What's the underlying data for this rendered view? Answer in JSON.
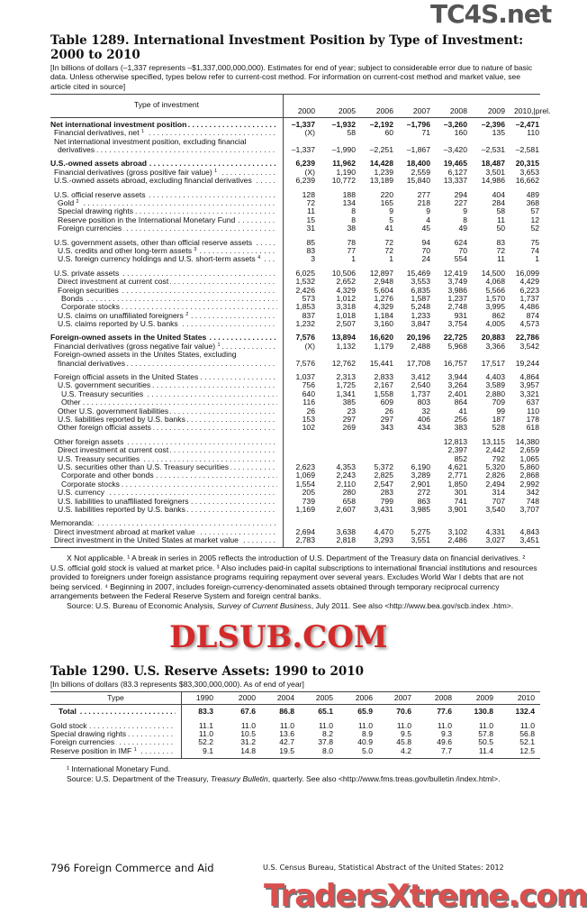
{
  "table1": {
    "title": "Table 1289. International Investment Position by Type of Investment: 2000 to 2010",
    "headnote": "[In billions of dollars (–1,337 represents –$1,337,000,000,000). Estimates for end of year; subject to considerable error due to nature of basic data. Unless otherwise specified, types below refer to current-cost method. For information on current-cost method and market value, see article cited in source]",
    "stub_header": "Type of investment",
    "years": [
      "2000",
      "2005",
      "2006",
      "2007",
      "2008",
      "2009",
      "2010,|prel."
    ],
    "rows": [
      {
        "label": "Net international investment position",
        "bold": true,
        "indent": 0,
        "values": [
          "–1,337",
          "–1,932",
          "–2,192",
          "–1,796",
          "–3,260",
          "–2,396",
          "–2,471"
        ]
      },
      {
        "label": "Financial derivatives, net",
        "sup": "1",
        "indent": 1,
        "values": [
          "(X)",
          "58",
          "60",
          "71",
          "160",
          "135",
          "110"
        ]
      },
      {
        "label": "Net international investment position, excluding financial",
        "indent": 1,
        "nodots": true,
        "values": []
      },
      {
        "label": "derivatives",
        "indent": 2,
        "values": [
          "–1,337",
          "–1,990",
          "–2,251",
          "–1,867",
          "–3,420",
          "–2,531",
          "–2,581"
        ]
      },
      {
        "label": "U.S.-owned assets abroad",
        "bold": true,
        "gap": true,
        "indent": 0,
        "values": [
          "6,239",
          "11,962",
          "14,428",
          "18,400",
          "19,465",
          "18,487",
          "20,315"
        ]
      },
      {
        "label": "Financial derivatives (gross positive fair value)",
        "sup": "1",
        "indent": 1,
        "values": [
          "(X)",
          "1,190",
          "1,239",
          "2,559",
          "6,127",
          "3,501",
          "3,653"
        ]
      },
      {
        "label": "U.S.-owned assets abroad, excluding financial derivatives",
        "indent": 1,
        "values": [
          "6,239",
          "10,772",
          "13,189",
          "15,840",
          "13,337",
          "14,986",
          "16,662"
        ]
      },
      {
        "label": "U.S. official reserve assets",
        "gap": true,
        "indent": 1,
        "values": [
          "128",
          "188",
          "220",
          "277",
          "294",
          "404",
          "489"
        ]
      },
      {
        "label": "Gold",
        "sup": "2",
        "indent": 2,
        "values": [
          "72",
          "134",
          "165",
          "218",
          "227",
          "284",
          "368"
        ]
      },
      {
        "label": "Special drawing rights",
        "indent": 2,
        "values": [
          "11",
          "8",
          "9",
          "9",
          "9",
          "58",
          "57"
        ]
      },
      {
        "label": "Reserve position in the International Monetary Fund",
        "indent": 2,
        "values": [
          "15",
          "8",
          "5",
          "4",
          "8",
          "11",
          "12"
        ]
      },
      {
        "label": "Foreign currencies",
        "indent": 2,
        "values": [
          "31",
          "38",
          "41",
          "45",
          "49",
          "50",
          "52"
        ]
      },
      {
        "label": "U.S. government assets, other than official reserve assets",
        "gap": true,
        "indent": 1,
        "values": [
          "85",
          "78",
          "72",
          "94",
          "624",
          "83",
          "75"
        ]
      },
      {
        "label": "U.S. credits and other long-term assets",
        "sup": "3",
        "indent": 2,
        "values": [
          "83",
          "77",
          "72",
          "70",
          "70",
          "72",
          "74"
        ]
      },
      {
        "label": "U.S. foreign currency holdings and U.S. short-term assets",
        "sup": "4",
        "indent": 2,
        "values": [
          "3",
          "1",
          "1",
          "24",
          "554",
          "11",
          "1"
        ]
      },
      {
        "label": "U.S. private assets",
        "gap": true,
        "indent": 1,
        "values": [
          "6,025",
          "10,506",
          "12,897",
          "15,469",
          "12,419",
          "14,500",
          "16,099"
        ]
      },
      {
        "label": "Direct investment at current cost",
        "indent": 2,
        "values": [
          "1,532",
          "2,652",
          "2,948",
          "3,553",
          "3,749",
          "4,068",
          "4,429"
        ]
      },
      {
        "label": "Foreign securities",
        "indent": 2,
        "values": [
          "2,426",
          "4,329",
          "5,604",
          "6,835",
          "3,986",
          "5,566",
          "6,223"
        ]
      },
      {
        "label": "Bonds",
        "indent": 3,
        "values": [
          "573",
          "1,012",
          "1,276",
          "1,587",
          "1,237",
          "1,570",
          "1,737"
        ]
      },
      {
        "label": "Corporate stocks",
        "indent": 3,
        "values": [
          "1,853",
          "3,318",
          "4,329",
          "5,248",
          "2,748",
          "3,995",
          "4,486"
        ]
      },
      {
        "label": "U.S. claims on unaffiliated foreigners",
        "sup": "2",
        "indent": 2,
        "values": [
          "837",
          "1,018",
          "1,184",
          "1,233",
          "931",
          "862",
          "874"
        ]
      },
      {
        "label": "U.S. claims reported by U.S. banks",
        "indent": 2,
        "values": [
          "1,232",
          "2,507",
          "3,160",
          "3,847",
          "3,754",
          "4,005",
          "4,573"
        ]
      },
      {
        "label": "Foreign-owned assets in the United States",
        "bold": true,
        "gap": true,
        "indent": 0,
        "values": [
          "7,576",
          "13,894",
          "16,620",
          "20,196",
          "22,725",
          "20,883",
          "22,786"
        ]
      },
      {
        "label": "Financial derivatives (gross negative fair value)",
        "sup": "1",
        "indent": 1,
        "values": [
          "(X)",
          "1,132",
          "1,179",
          "2,488",
          "5,968",
          "3,366",
          "3,542"
        ]
      },
      {
        "label": "Foreign-owned assets in the Unites States, excluding",
        "indent": 1,
        "nodots": true,
        "values": []
      },
      {
        "label": "financial derivatives",
        "indent": 2,
        "values": [
          "7,576",
          "12,762",
          "15,441",
          "17,708",
          "16,757",
          "17,517",
          "19,244"
        ]
      },
      {
        "label": "Foreign official assets in the United States",
        "gap": true,
        "indent": 1,
        "values": [
          "1,037",
          "2,313",
          "2,833",
          "3,412",
          "3,944",
          "4,403",
          "4,864"
        ]
      },
      {
        "label": "U.S. government securities",
        "indent": 2,
        "values": [
          "756",
          "1,725",
          "2,167",
          "2,540",
          "3,264",
          "3,589",
          "3,957"
        ]
      },
      {
        "label": "U.S. Treasury securities",
        "indent": 3,
        "values": [
          "640",
          "1,341",
          "1,558",
          "1,737",
          "2,401",
          "2,880",
          "3,321"
        ]
      },
      {
        "label": "Other",
        "indent": 3,
        "values": [
          "116",
          "385",
          "609",
          "803",
          "864",
          "709",
          "637"
        ]
      },
      {
        "label": "Other U.S. government liabilities",
        "indent": 2,
        "values": [
          "26",
          "23",
          "26",
          "32",
          "41",
          "99",
          "110"
        ]
      },
      {
        "label": "U.S. liabilities reported by U.S. banks",
        "indent": 2,
        "values": [
          "153",
          "297",
          "297",
          "406",
          "256",
          "187",
          "178"
        ]
      },
      {
        "label": "Other foreign official assets",
        "indent": 2,
        "values": [
          "102",
          "269",
          "343",
          "434",
          "383",
          "528",
          "618"
        ]
      },
      {
        "label": "Other foreign assets",
        "gap": true,
        "indent": 1,
        "values": [
          "",
          "",
          "",
          "",
          "12,813",
          "13,115",
          "14,380"
        ]
      },
      {
        "label": "Direct investment at current cost",
        "indent": 2,
        "values": [
          "",
          "",
          "",
          "",
          "2,397",
          "2,442",
          "2,659"
        ]
      },
      {
        "label": "U.S. Treasury securities",
        "indent": 2,
        "values": [
          "",
          "",
          "",
          "",
          "852",
          "792",
          "1,065"
        ]
      },
      {
        "label": "U.S. securities other than U.S. Treasury securities",
        "indent": 2,
        "values": [
          "2,623",
          "4,353",
          "5,372",
          "6,190",
          "4,621",
          "5,320",
          "5,860"
        ]
      },
      {
        "label": "Corporate and other bonds",
        "indent": 3,
        "values": [
          "1,069",
          "2,243",
          "2,825",
          "3,289",
          "2,771",
          "2,826",
          "2,868"
        ]
      },
      {
        "label": "Corporate stocks",
        "indent": 3,
        "values": [
          "1,554",
          "2,110",
          "2,547",
          "2,901",
          "1,850",
          "2,494",
          "2,992"
        ]
      },
      {
        "label": "U.S. currency",
        "indent": 2,
        "values": [
          "205",
          "280",
          "283",
          "272",
          "301",
          "314",
          "342"
        ]
      },
      {
        "label": "U.S. liabilities to unaffiliated foreigners",
        "indent": 2,
        "values": [
          "739",
          "658",
          "799",
          "863",
          "741",
          "707",
          "748"
        ]
      },
      {
        "label": "U.S. liabilities reported by U.S. banks",
        "indent": 2,
        "values": [
          "1,169",
          "2,607",
          "3,431",
          "3,985",
          "3,901",
          "3,540",
          "3,707"
        ]
      },
      {
        "label": "Memoranda:",
        "gap": true,
        "indent": 0,
        "values": []
      },
      {
        "label": "Direct investment abroad at market value",
        "indent": 1,
        "values": [
          "2,694",
          "3,638",
          "4,470",
          "5,275",
          "3,102",
          "4,331",
          "4,843"
        ]
      },
      {
        "label": "Direct investment in the United States at market value",
        "indent": 1,
        "values": [
          "2,783",
          "2,818",
          "3,293",
          "3,551",
          "2,486",
          "3,027",
          "3,451"
        ]
      }
    ],
    "footnotes": "X Not applicable. ¹ A break in series in 2005 reflects the introduction of U.S. Department of the Treasury data on financial derivatives. ² U.S. official gold stock is valued at market price. ³ Also includes paid-in capital subscriptions to international financial institutions and resources provided to foreigners under foreign assistance programs requiring repayment over several years. Excludes World War I debts that are not being serviced. ⁴ Beginning in 2007, includes foreign-currency-denominated assets obtained through temporary reciprocal currency arrangements between the Federal Reserve System and foreign central banks.",
    "source_prefix": "Source: U.S. Bureau of Economic Analysis, ",
    "source_italic": "Survey of Current Business",
    "source_suffix": ", July 2011. See also <http://www.bea.gov/scb.index .htm>."
  },
  "table2": {
    "title": "Table 1290. U.S. Reserve Assets: 1990 to 2010",
    "headnote": "[In billions of dollars (83.3 represents $83,300,000,000). As of end of year]",
    "stub_header": "Type",
    "years": [
      "1990",
      "2000",
      "2004",
      "2005",
      "2006",
      "2007",
      "2008",
      "2009",
      "2010"
    ],
    "rows": [
      {
        "label": "Total",
        "bold": true,
        "indent": 1,
        "values": [
          "83.3",
          "67.6",
          "86.8",
          "65.1",
          "65.9",
          "70.6",
          "77.6",
          "130.8",
          "132.4"
        ]
      },
      {
        "label": "Gold stock",
        "gap": true,
        "indent": 0,
        "values": [
          "11.1",
          "11.0",
          "11.0",
          "11.0",
          "11.0",
          "11.0",
          "11.0",
          "11.0",
          "11.0"
        ]
      },
      {
        "label": "Special drawing rights",
        "indent": 0,
        "values": [
          "11.0",
          "10.5",
          "13.6",
          "8.2",
          "8.9",
          "9.5",
          "9.3",
          "57.8",
          "56.8"
        ]
      },
      {
        "label": "Foreign currencies",
        "indent": 0,
        "values": [
          "52.2",
          "31.2",
          "42.7",
          "37.8",
          "40.9",
          "45.8",
          "49.6",
          "50.5",
          "52.1"
        ]
      },
      {
        "label": "Reserve position in IMF",
        "sup": "1",
        "indent": 0,
        "values": [
          "9.1",
          "14.8",
          "19.5",
          "8.0",
          "5.0",
          "4.2",
          "7.7",
          "11.4",
          "12.5"
        ]
      }
    ],
    "footnote": "¹ International Monetary Fund.",
    "source_prefix": "Source: U.S. Department of the Treasury, ",
    "source_italic": "Treasury Bulletin",
    "source_suffix": ", quarterly. See also <http://www.fms.treas.gov/bulletin /index.html>."
  },
  "footer": {
    "page_section": "796  Foreign Commerce and Aid",
    "publication": "U.S. Census Bureau, Statistical Abstract of the United States: 2012"
  },
  "watermarks": {
    "top": "TC4S.net",
    "middle": "DLSUB.COM",
    "bottom": "TradersXtreme.com"
  },
  "colors": {
    "watermark_red": "#d42a2a",
    "watermark_gray": "#555555",
    "rule": "#444444"
  }
}
